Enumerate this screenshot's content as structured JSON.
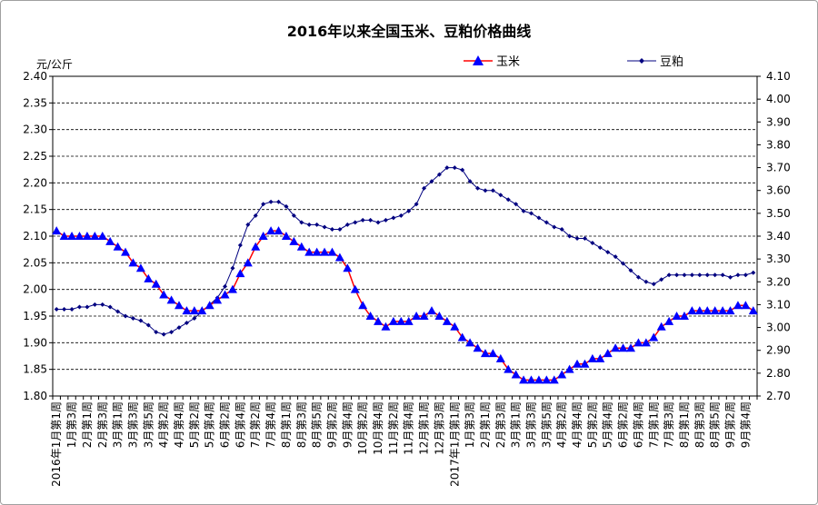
{
  "chart_data": {
    "type": "line",
    "title": "2016年以来全国玉米、豆粕价格曲线",
    "y_left_unit": "元/公斤",
    "y_left": {
      "min": 1.8,
      "max": 2.4,
      "step": 0.05,
      "ticks": [
        "1.80",
        "1.85",
        "1.90",
        "1.95",
        "2.00",
        "2.05",
        "2.10",
        "2.15",
        "2.20",
        "2.25",
        "2.30",
        "2.35",
        "2.40"
      ]
    },
    "y_right": {
      "min": 2.7,
      "max": 4.1,
      "step": 0.1,
      "ticks": [
        "2.70",
        "2.80",
        "2.90",
        "3.00",
        "3.10",
        "3.20",
        "3.30",
        "3.40",
        "3.50",
        "3.60",
        "3.70",
        "3.80",
        "3.90",
        "4.00",
        "4.10"
      ]
    },
    "grid": true,
    "legend_position": "top-right",
    "series": [
      {
        "name": "玉米",
        "axis": "left",
        "color": "#ff0000",
        "marker_color": "#0000ff",
        "marker": "triangle",
        "values": [
          2.11,
          2.1,
          2.1,
          2.1,
          2.1,
          2.1,
          2.1,
          2.09,
          2.08,
          2.07,
          2.05,
          2.04,
          2.02,
          2.01,
          1.99,
          1.98,
          1.97,
          1.96,
          1.96,
          1.96,
          1.97,
          1.98,
          1.99,
          2.0,
          2.03,
          2.05,
          2.08,
          2.1,
          2.11,
          2.11,
          2.1,
          2.09,
          2.08,
          2.07,
          2.07,
          2.07,
          2.07,
          2.06,
          2.04,
          2.0,
          1.97,
          1.95,
          1.94,
          1.93,
          1.94,
          1.94,
          1.94,
          1.95,
          1.95,
          1.96,
          1.95,
          1.94,
          1.93,
          1.91,
          1.9,
          1.89,
          1.88,
          1.88,
          1.87,
          1.85,
          1.84,
          1.83,
          1.83,
          1.83,
          1.83,
          1.83,
          1.84,
          1.85,
          1.86,
          1.86,
          1.87,
          1.87,
          1.88,
          1.89,
          1.89,
          1.89,
          1.9,
          1.9,
          1.91,
          1.93,
          1.94,
          1.95,
          1.95,
          1.96,
          1.96,
          1.96,
          1.96,
          1.96,
          1.96,
          1.97,
          1.97,
          1.96
        ]
      },
      {
        "name": "豆粕",
        "axis": "right",
        "color": "#000080",
        "marker_color": "#000080",
        "marker": "diamond",
        "values": [
          3.08,
          3.08,
          3.08,
          3.09,
          3.09,
          3.1,
          3.1,
          3.09,
          3.07,
          3.05,
          3.04,
          3.03,
          3.01,
          2.98,
          2.97,
          2.98,
          3.0,
          3.02,
          3.04,
          3.07,
          3.1,
          3.13,
          3.18,
          3.26,
          3.36,
          3.45,
          3.49,
          3.54,
          3.55,
          3.55,
          3.53,
          3.49,
          3.46,
          3.45,
          3.45,
          3.44,
          3.43,
          3.43,
          3.45,
          3.46,
          3.47,
          3.47,
          3.46,
          3.47,
          3.48,
          3.49,
          3.51,
          3.54,
          3.61,
          3.64,
          3.67,
          3.7,
          3.7,
          3.69,
          3.64,
          3.61,
          3.6,
          3.6,
          3.58,
          3.56,
          3.54,
          3.51,
          3.5,
          3.48,
          3.46,
          3.44,
          3.43,
          3.4,
          3.39,
          3.39,
          3.37,
          3.35,
          3.33,
          3.31,
          3.28,
          3.25,
          3.22,
          3.2,
          3.19,
          3.21,
          3.23,
          3.23,
          3.23,
          3.23,
          3.23,
          3.23,
          3.23,
          3.23,
          3.22,
          3.23,
          3.23,
          3.24
        ]
      }
    ],
    "x_tick_labels": [
      "2016年1月第1周",
      "1月第3周",
      "2月第1周",
      "2月第3周",
      "3月第1周",
      "3月第3周",
      "3月第5周",
      "4月第2周",
      "4月第4周",
      "5月第2周",
      "5月第4周",
      "6月第2周",
      "6月第4周",
      "7月第2周",
      "7月第4周",
      "8月第1周",
      "8月第3周",
      "8月第5周",
      "9月第2周",
      "9月第4周",
      "10月第2周",
      "10月第4周",
      "11月第2周",
      "11月第4周",
      "12月第1周",
      "12月第3周",
      "2017年1月第1周",
      "1月第3周",
      "2月第1周",
      "2月第3周",
      "3月第1周",
      "3月第3周",
      "3月第5周",
      "4月第2周",
      "4月第4周",
      "5月第2周",
      "5月第4周",
      "6月第2周",
      "6月第4周",
      "7月第1周",
      "7月第3周",
      "8月第1周",
      "8月第3周",
      "8月第5周",
      "9月第2周",
      "9月第4周"
    ]
  }
}
